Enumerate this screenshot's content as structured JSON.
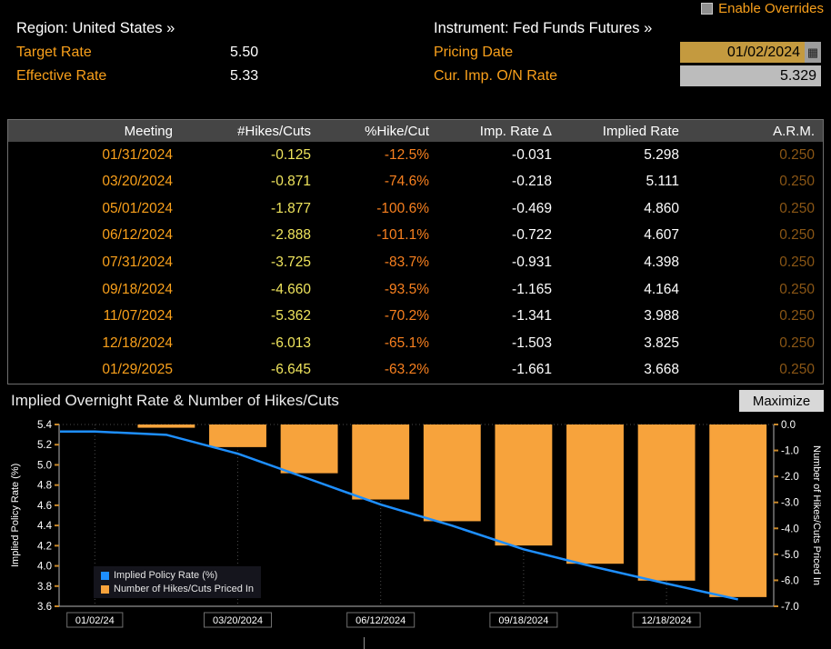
{
  "overrides": {
    "label": "Enable Overrides"
  },
  "header": {
    "region": "Region: United States »",
    "instrument": "Instrument: Fed Funds Futures »",
    "target_rate_label": "Target Rate",
    "target_rate_value": "5.50",
    "effective_rate_label": "Effective Rate",
    "effective_rate_value": "5.33",
    "pricing_date_label": "Pricing Date",
    "pricing_date_value": "01/02/2024",
    "cur_imp_on_rate_label": "Cur. Imp. O/N Rate",
    "cur_imp_on_rate_value": "5.329"
  },
  "table": {
    "columns": [
      "Meeting",
      "#Hikes/Cuts",
      "%Hike/Cut",
      "Imp. Rate Δ",
      "Implied Rate",
      "A.R.M."
    ],
    "column_colors": [
      "#f9a01b",
      "#efe45d",
      "#f8801f",
      "#ffffff",
      "#ffffff",
      "#8a5615"
    ],
    "rows": [
      [
        "01/31/2024",
        "-0.125",
        "-12.5%",
        "-0.031",
        "5.298",
        "0.250"
      ],
      [
        "03/20/2024",
        "-0.871",
        "-74.6%",
        "-0.218",
        "5.111",
        "0.250"
      ],
      [
        "05/01/2024",
        "-1.877",
        "-100.6%",
        "-0.469",
        "4.860",
        "0.250"
      ],
      [
        "06/12/2024",
        "-2.888",
        "-101.1%",
        "-0.722",
        "4.607",
        "0.250"
      ],
      [
        "07/31/2024",
        "-3.725",
        "-83.7%",
        "-0.931",
        "4.398",
        "0.250"
      ],
      [
        "09/18/2024",
        "-4.660",
        "-93.5%",
        "-1.165",
        "4.164",
        "0.250"
      ],
      [
        "11/07/2024",
        "-5.362",
        "-70.2%",
        "-1.341",
        "3.988",
        "0.250"
      ],
      [
        "12/18/2024",
        "-6.013",
        "-65.1%",
        "-1.503",
        "3.825",
        "0.250"
      ],
      [
        "01/29/2025",
        "-6.645",
        "-63.2%",
        "-1.661",
        "3.668",
        "0.250"
      ]
    ]
  },
  "chart": {
    "title": "Implied Overnight Rate & Number of Hikes/Cuts",
    "maximize_label": "Maximize"
  },
  "chart_data": {
    "type": "line+bar",
    "title": "Implied Overnight Rate & Number of Hikes/Cuts",
    "x_categories": [
      "01/02/24",
      "01/31/2024",
      "03/20/2024",
      "05/01/2024",
      "06/12/2024",
      "07/31/2024",
      "09/18/2024",
      "11/07/2024",
      "12/18/2024",
      "01/29/2025"
    ],
    "x_tick_labels": [
      {
        "label": "01/02/24",
        "index": 0
      },
      {
        "label": "03/20/2024",
        "index": 2
      },
      {
        "label": "06/12/2024",
        "index": 4
      },
      {
        "label": "09/18/2024",
        "index": 6
      },
      {
        "label": "12/18/2024",
        "index": 8
      }
    ],
    "series": [
      {
        "name": "Implied Policy Rate (%)",
        "type": "line",
        "axis": "left",
        "color": "#1e8fff",
        "values": [
          5.33,
          5.298,
          5.111,
          4.86,
          4.607,
          4.398,
          4.164,
          3.988,
          3.825,
          3.668
        ]
      },
      {
        "name": "Number of Hikes/Cuts Priced In",
        "type": "bar",
        "axis": "right",
        "color": "#f7a33c",
        "values": [
          null,
          -0.125,
          -0.871,
          -1.877,
          -2.888,
          -3.725,
          -4.66,
          -5.362,
          -6.013,
          -6.645
        ]
      }
    ],
    "left_axis": {
      "label": "Implied Policy Rate (%)",
      "min": 3.6,
      "max": 5.4,
      "tick_step": 0.2
    },
    "right_axis": {
      "label": "Number of Hikes/Cuts Priced In",
      "min": -7.0,
      "max": 0.0,
      "tick_step": 1.0
    },
    "grid": "dotted-vertical",
    "legend_position": "bottom-left-inside"
  }
}
